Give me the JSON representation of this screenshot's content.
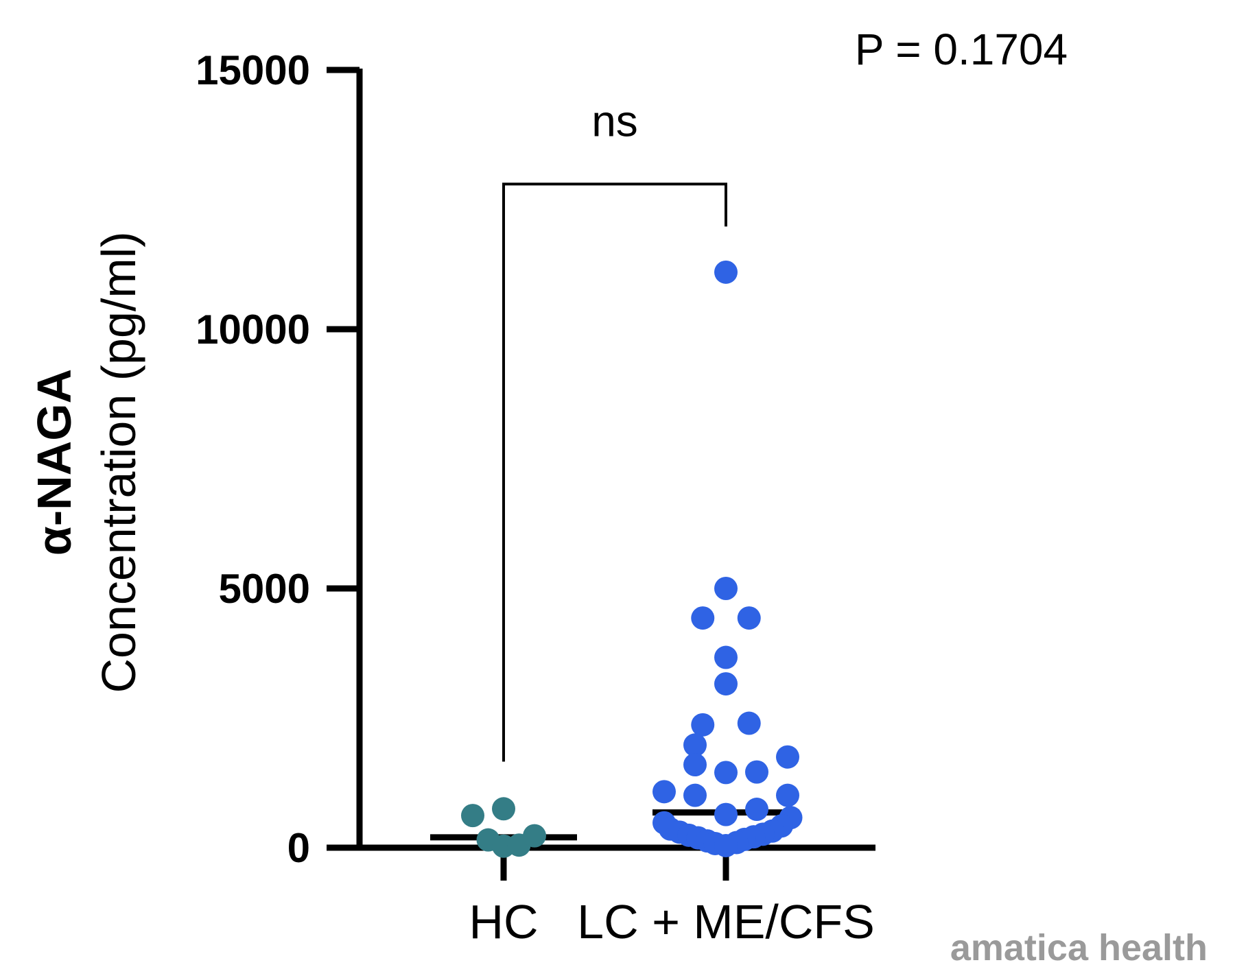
{
  "chart_data": {
    "type": "scatter",
    "title": "",
    "ylabel_line1": "α-NAGA",
    "ylabel_line2": "Concentration (pg/ml)",
    "xlabel": "",
    "ylim": [
      0,
      15000
    ],
    "yticks": [
      "0",
      "5000",
      "10000",
      "15000"
    ],
    "grid": false,
    "categories": [
      "HC",
      "LC + ME/CFS"
    ],
    "series": [
      {
        "name": "HC",
        "color": "#347d86",
        "median": 200,
        "points": [
          {
            "value": 620,
            "offset": -1.0
          },
          {
            "value": 750,
            "offset": 0.0
          },
          {
            "value": 150,
            "offset": -0.5
          },
          {
            "value": 30,
            "offset": 0.0
          },
          {
            "value": 50,
            "offset": 0.5
          },
          {
            "value": 230,
            "offset": 1.0
          }
        ]
      },
      {
        "name": "LC + ME/CFS",
        "color": "#2f63e4",
        "median": 680,
        "points": [
          {
            "value": 11100,
            "offset": 0.0
          },
          {
            "value": 5000,
            "offset": 0.0
          },
          {
            "value": 4430,
            "offset": -0.75
          },
          {
            "value": 4430,
            "offset": 0.75
          },
          {
            "value": 3670,
            "offset": 0.0
          },
          {
            "value": 3160,
            "offset": 0.0
          },
          {
            "value": 2370,
            "offset": -0.75
          },
          {
            "value": 2400,
            "offset": 0.75
          },
          {
            "value": 1980,
            "offset": -1.0
          },
          {
            "value": 1750,
            "offset": 2.0
          },
          {
            "value": 1600,
            "offset": -1.0
          },
          {
            "value": 1450,
            "offset": 0.0
          },
          {
            "value": 1460,
            "offset": 1.0
          },
          {
            "value": 1080,
            "offset": -2.0
          },
          {
            "value": 1010,
            "offset": -1.0
          },
          {
            "value": 1010,
            "offset": 2.0
          },
          {
            "value": 740,
            "offset": 1.0
          },
          {
            "value": 640,
            "offset": 0.0
          },
          {
            "value": 580,
            "offset": 2.1
          },
          {
            "value": 480,
            "offset": -2.0
          },
          {
            "value": 420,
            "offset": 1.8
          },
          {
            "value": 360,
            "offset": -1.8
          },
          {
            "value": 320,
            "offset": 1.5
          },
          {
            "value": 300,
            "offset": -1.5
          },
          {
            "value": 260,
            "offset": 1.2
          },
          {
            "value": 240,
            "offset": -1.2
          },
          {
            "value": 210,
            "offset": 0.9
          },
          {
            "value": 190,
            "offset": -0.9
          },
          {
            "value": 160,
            "offset": 0.6
          },
          {
            "value": 130,
            "offset": -0.6
          },
          {
            "value": 100,
            "offset": 0.35
          },
          {
            "value": 80,
            "offset": -0.35
          },
          {
            "value": 40,
            "offset": 0.0
          }
        ]
      }
    ],
    "significance": {
      "label": "ns",
      "p_text": "P = 0.1704",
      "from": "HC",
      "to": "LC + ME/CFS",
      "bracket_value": 12800,
      "left_leg_value": 1660,
      "right_leg_value": 11980
    }
  },
  "watermark": "amatica health"
}
